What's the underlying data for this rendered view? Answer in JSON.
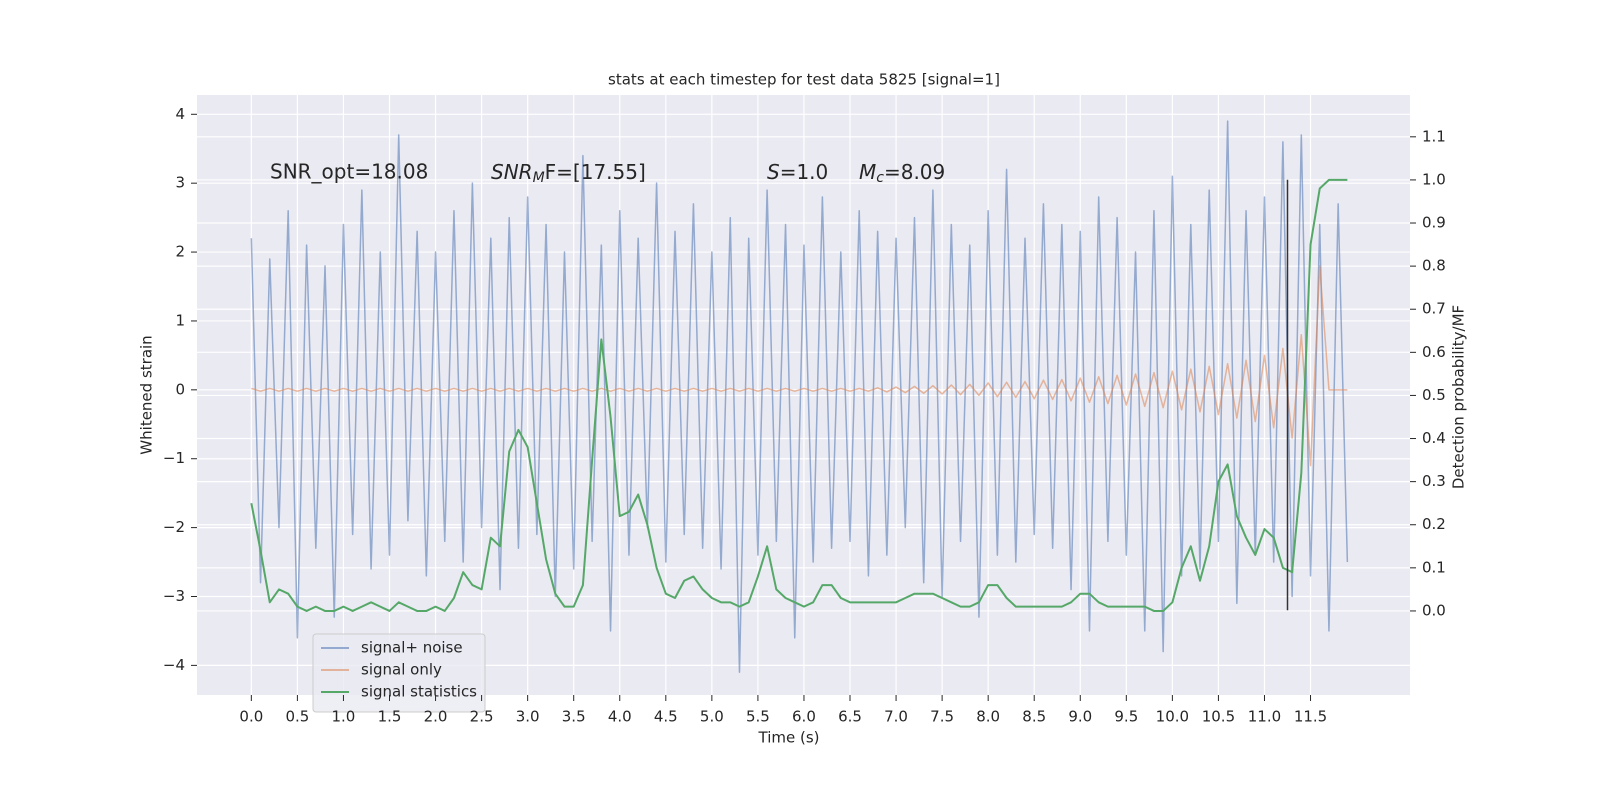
{
  "chart_data": {
    "type": "line",
    "title": "stats at each timestep for test data 5825 [signal=1]",
    "xlabel": "Time (s)",
    "ylabel": "Whitened strain",
    "y2label": "Detection probability/MF",
    "annotations": [
      "SNR_opt=18.08",
      {
        "base": "SNR",
        "sub": "M",
        "rest": "F=[17.55]"
      },
      {
        "base": "S",
        "rest": "=1.0"
      },
      {
        "base": "M",
        "sub": "c",
        "rest": "=8.09"
      }
    ],
    "xlim": [
      -0.59,
      12.58
    ],
    "ylim": [
      -4.43,
      4.28
    ],
    "y2lim": [
      -0.195,
      1.197
    ],
    "xticks": [
      {
        "value": 0,
        "label": "0.0"
      },
      {
        "value": 0.5,
        "label": "0.5"
      },
      {
        "value": 1,
        "label": "1.0"
      },
      {
        "value": 1.5,
        "label": "1.5"
      },
      {
        "value": 2,
        "label": "2.0"
      },
      {
        "value": 2.5,
        "label": "2.5"
      },
      {
        "value": 3,
        "label": "3.0"
      },
      {
        "value": 3.5,
        "label": "3.5"
      },
      {
        "value": 4,
        "label": "4.0"
      },
      {
        "value": 4.5,
        "label": "4.5"
      },
      {
        "value": 5,
        "label": "5.0"
      },
      {
        "value": 5.5,
        "label": "5.5"
      },
      {
        "value": 6,
        "label": "6.0"
      },
      {
        "value": 6.5,
        "label": "6.5"
      },
      {
        "value": 7,
        "label": "7.0"
      },
      {
        "value": 7.5,
        "label": "7.5"
      },
      {
        "value": 8,
        "label": "8.0"
      },
      {
        "value": 8.5,
        "label": "8.5"
      },
      {
        "value": 9,
        "label": "9.0"
      },
      {
        "value": 9.5,
        "label": "9.5"
      },
      {
        "value": 10,
        "label": "10.0"
      },
      {
        "value": 10.5,
        "label": "10.5"
      },
      {
        "value": 11,
        "label": "11.0"
      },
      {
        "value": 11.5,
        "label": "11.5"
      }
    ],
    "yticks": [
      {
        "value": -4,
        "label": "−4"
      },
      {
        "value": -3,
        "label": "−3"
      },
      {
        "value": -2,
        "label": "−2"
      },
      {
        "value": -1,
        "label": "−1"
      },
      0,
      1,
      2,
      3,
      4
    ],
    "y2ticks": [
      {
        "value": 0,
        "label": "0.0"
      },
      {
        "value": 0.1,
        "label": "0.1"
      },
      {
        "value": 0.2,
        "label": "0.2"
      },
      {
        "value": 0.3,
        "label": "0.3"
      },
      {
        "value": 0.4,
        "label": "0.4"
      },
      {
        "value": 0.5,
        "label": "0.5"
      },
      {
        "value": 0.6,
        "label": "0.6"
      },
      {
        "value": 0.7,
        "label": "0.7"
      },
      {
        "value": 0.8,
        "label": "0.8"
      },
      {
        "value": 0.9,
        "label": "0.9"
      },
      {
        "value": 1,
        "label": "1.0"
      },
      {
        "value": 1.1,
        "label": "1.1"
      }
    ],
    "grid": true,
    "legend": "lower left",
    "vline": {
      "x": 11.25,
      "y": [
        -3.2,
        3.05
      ],
      "color": "#333333"
    },
    "x": [
      0,
      0.1,
      0.2,
      0.3,
      0.4,
      0.5,
      0.6,
      0.7,
      0.8,
      0.9,
      1,
      1.1,
      1.2,
      1.3,
      1.4,
      1.5,
      1.6,
      1.7,
      1.8,
      1.9,
      2,
      2.1,
      2.2,
      2.3,
      2.4,
      2.5,
      2.6,
      2.7,
      2.8,
      2.9,
      3,
      3.1,
      3.2,
      3.3,
      3.4,
      3.5,
      3.6,
      3.7,
      3.8,
      3.9,
      4,
      4.1,
      4.2,
      4.3,
      4.4,
      4.5,
      4.6,
      4.7,
      4.8,
      4.9,
      5,
      5.1,
      5.2,
      5.3,
      5.4,
      5.5,
      5.6,
      5.7,
      5.8,
      5.9,
      6,
      6.1,
      6.2,
      6.3,
      6.4,
      6.5,
      6.6,
      6.7,
      6.8,
      6.9,
      7,
      7.1,
      7.2,
      7.3,
      7.4,
      7.5,
      7.6,
      7.7,
      7.8,
      7.9,
      8,
      8.1,
      8.2,
      8.3,
      8.4,
      8.5,
      8.6,
      8.7,
      8.8,
      8.9,
      9,
      9.1,
      9.2,
      9.3,
      9.4,
      9.5,
      9.6,
      9.7,
      9.8,
      9.9,
      10,
      10.1,
      10.2,
      10.3,
      10.4,
      10.5,
      10.6,
      10.7,
      10.8,
      10.9,
      11,
      11.1,
      11.2,
      11.3,
      11.4,
      11.5,
      11.6,
      11.7,
      11.8,
      11.9
    ],
    "series": [
      {
        "name": "signal+ noise",
        "color": "#4c72b0",
        "values": [
          2.2,
          -2.8,
          1.9,
          -2.0,
          2.6,
          -3.6,
          2.1,
          -2.3,
          1.8,
          -3.3,
          2.4,
          -2.1,
          2.9,
          -2.6,
          2.0,
          -2.4,
          3.7,
          -1.9,
          2.3,
          -2.7,
          2.0,
          -2.2,
          2.6,
          -2.5,
          3.0,
          -2.0,
          2.2,
          -2.9,
          2.5,
          -2.3,
          2.8,
          -2.1,
          2.4,
          -3.0,
          2.0,
          -2.6,
          3.4,
          -2.2,
          2.1,
          -3.5,
          2.6,
          -2.4,
          2.2,
          -2.0,
          3.0,
          -2.5,
          2.3,
          -2.1,
          2.7,
          -2.3,
          2.0,
          -2.6,
          2.5,
          -4.1,
          2.2,
          -2.4,
          2.9,
          -2.2,
          2.4,
          -3.6,
          2.1,
          -2.5,
          2.8,
          -2.3,
          2.0,
          -2.2,
          2.6,
          -2.7,
          2.3,
          -2.4,
          2.2,
          -2.0,
          2.5,
          -2.8,
          2.9,
          -3.0,
          2.4,
          -2.2,
          2.1,
          -3.3,
          2.6,
          -2.4,
          3.2,
          -2.5,
          2.2,
          -2.1,
          2.7,
          -2.3,
          2.4,
          -2.9,
          2.3,
          -3.5,
          2.8,
          -2.2,
          2.5,
          -2.4,
          2.0,
          -3.5,
          2.6,
          -3.8,
          3.1,
          -2.7,
          2.4,
          -2.6,
          2.9,
          -2.2,
          3.9,
          -3.1,
          2.6,
          -2.4,
          2.8,
          -2.5,
          3.6,
          -3.0,
          3.7,
          -2.7,
          2.4,
          -3.5,
          2.7,
          -2.5
        ]
      },
      {
        "name": "signal only",
        "color": "#dd8452",
        "values": [
          0.02,
          -0.02,
          0.02,
          -0.02,
          0.02,
          -0.02,
          0.02,
          -0.02,
          0.02,
          -0.02,
          0.02,
          -0.02,
          0.02,
          -0.02,
          0.02,
          -0.02,
          0.02,
          -0.02,
          0.02,
          -0.02,
          0.02,
          -0.02,
          0.02,
          -0.02,
          0.02,
          -0.02,
          0.02,
          -0.02,
          0.02,
          -0.02,
          0.02,
          -0.02,
          0.02,
          -0.02,
          0.02,
          -0.02,
          0.02,
          -0.02,
          0.02,
          -0.02,
          0.02,
          -0.02,
          0.02,
          -0.02,
          0.02,
          -0.02,
          0.02,
          -0.02,
          0.02,
          -0.02,
          0.02,
          -0.02,
          0.02,
          -0.02,
          0.02,
          -0.02,
          0.02,
          -0.02,
          0.02,
          -0.02,
          0.02,
          -0.02,
          0.02,
          -0.02,
          0.02,
          -0.02,
          0.02,
          -0.02,
          0.03,
          -0.03,
          0.04,
          -0.04,
          0.05,
          -0.05,
          0.06,
          -0.06,
          0.07,
          -0.07,
          0.08,
          -0.08,
          0.1,
          -0.1,
          0.11,
          -0.11,
          0.12,
          -0.13,
          0.14,
          -0.14,
          0.15,
          -0.16,
          0.17,
          -0.18,
          0.19,
          -0.2,
          0.21,
          -0.22,
          0.23,
          -0.24,
          0.25,
          -0.26,
          0.27,
          -0.29,
          0.3,
          -0.32,
          0.34,
          -0.36,
          0.38,
          -0.41,
          0.43,
          -0.46,
          0.5,
          -0.55,
          0.6,
          -0.7,
          0.8,
          -1.1,
          1.8,
          0.0,
          0.0,
          0.0
        ]
      },
      {
        "name": "signal statistics",
        "color": "#55a868",
        "axis": "y2",
        "values": [
          0.25,
          0.14,
          0.02,
          0.05,
          0.04,
          0.01,
          0.0,
          0.01,
          0.0,
          0.0,
          0.01,
          0.0,
          0.01,
          0.02,
          0.01,
          0.0,
          0.02,
          0.01,
          0.0,
          0.0,
          0.01,
          0.0,
          0.03,
          0.09,
          0.06,
          0.05,
          0.17,
          0.15,
          0.37,
          0.42,
          0.38,
          0.25,
          0.12,
          0.04,
          0.01,
          0.01,
          0.06,
          0.35,
          0.63,
          0.45,
          0.22,
          0.23,
          0.27,
          0.2,
          0.1,
          0.04,
          0.03,
          0.07,
          0.08,
          0.05,
          0.03,
          0.02,
          0.02,
          0.01,
          0.02,
          0.08,
          0.15,
          0.05,
          0.03,
          0.02,
          0.01,
          0.02,
          0.06,
          0.06,
          0.03,
          0.02,
          0.02,
          0.02,
          0.02,
          0.02,
          0.02,
          0.03,
          0.04,
          0.04,
          0.04,
          0.03,
          0.02,
          0.01,
          0.01,
          0.02,
          0.06,
          0.06,
          0.03,
          0.01,
          0.01,
          0.01,
          0.01,
          0.01,
          0.01,
          0.02,
          0.04,
          0.04,
          0.02,
          0.01,
          0.01,
          0.01,
          0.01,
          0.01,
          0.0,
          0.0,
          0.02,
          0.1,
          0.15,
          0.07,
          0.15,
          0.3,
          0.34,
          0.22,
          0.17,
          0.13,
          0.19,
          0.17,
          0.1,
          0.09,
          0.32,
          0.85,
          0.98,
          1.0,
          1.0,
          1.0
        ]
      }
    ]
  }
}
